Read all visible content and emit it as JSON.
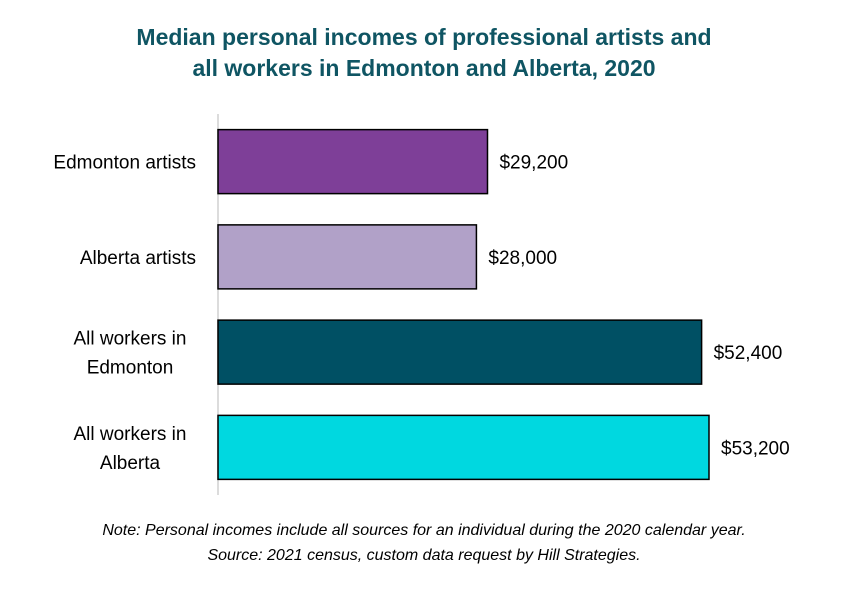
{
  "chart_data": {
    "type": "bar",
    "orientation": "horizontal",
    "title_lines": [
      "Median personal incomes of professional artists and",
      "all workers in Edmonton and Alberta, 2020"
    ],
    "categories": [
      [
        "Edmonton artists"
      ],
      [
        "Alberta artists"
      ],
      [
        "All workers in",
        "Edmonton"
      ],
      [
        "All workers in",
        "Alberta"
      ]
    ],
    "values": [
      29200,
      28000,
      52400,
      53200
    ],
    "value_labels": [
      "$29,200",
      "$28,000",
      "$52,400",
      "$53,200"
    ],
    "bar_colors": [
      "#7e3f98",
      "#b1a1c8",
      "#005064",
      "#00d8e0"
    ],
    "xlim": [
      0,
      56000
    ],
    "grid": false,
    "legend": "none"
  },
  "notes": {
    "note": "Note: Personal incomes include all sources for an individual during the 2020 calendar year.",
    "source": "Source: 2021 census, custom data request by Hill Strategies."
  }
}
